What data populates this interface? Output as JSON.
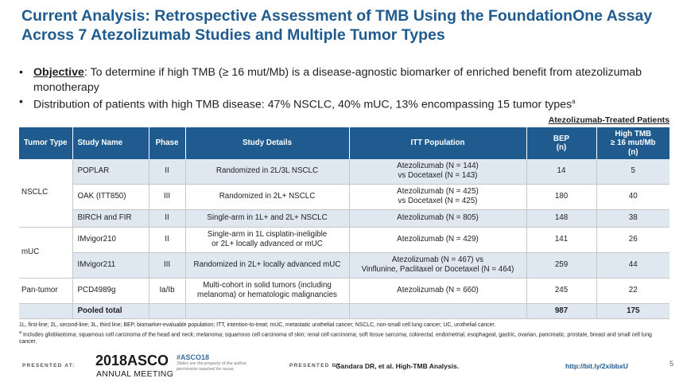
{
  "title": "Current Analysis: Retrospective Assessment of TMB Using the FoundationOne Assay Across 7 Atezolizumab Studies and Multiple Tumor Types",
  "bullets": {
    "objective_label": "Objective",
    "objective_text": ": To determine if high TMB (≥ 16 mut/Mb) is a disease-agnostic biomarker of enriched benefit from atezolizumab monotherapy",
    "distribution_text": "Distribution of patients with high TMB disease: 47% NSCLC, 40% mUC, 13% encompassing 15 tumor types",
    "distribution_superscript": "a"
  },
  "table_group_label": "Atezolizumab-Treated Patients",
  "table": {
    "headers": [
      "Tumor Type",
      "Study Name",
      "Phase",
      "Study Details",
      "ITT Population",
      "BEP\n(n)",
      "High TMB\n≥ 16 mut/Mb\n(n)"
    ],
    "groups": {
      "nsclc": "NSCLC",
      "muc": "mUC",
      "pan": "Pan-tumor"
    },
    "rows": [
      {
        "study": "POPLAR",
        "phase": "II",
        "details": "Randomized in 2L/3L NSCLC",
        "itt": "Atezolizumab (N = 144)\nvs Docetaxel (N = 143)",
        "bep": "14",
        "tmb": "5"
      },
      {
        "study": "OAK (ITT850)",
        "phase": "III",
        "details": "Randomized  in 2L+ NSCLC",
        "itt": "Atezolizumab (N = 425)\nvs Docetaxel (N = 425)",
        "bep": "180",
        "tmb": "40"
      },
      {
        "study": "BIRCH and FIR",
        "phase": "II",
        "details": "Single-arm in 1L+ and 2L+ NSCLC",
        "itt": "Atezolizumab (N = 805)",
        "bep": "148",
        "tmb": "38"
      },
      {
        "study": "IMvigor210",
        "phase": "II",
        "details": "Single-arm in 1L cisplatin-ineligible\nor 2L+ locally advanced or mUC",
        "itt": "Atezolizumab (N = 429)",
        "bep": "141",
        "tmb": "26"
      },
      {
        "study": "IMvigor211",
        "phase": "III",
        "details": "Randomized in 2L+ locally advanced mUC",
        "itt": "Atezolizumab (N = 467) vs\nVinflunine, Paclitaxel or Docetaxel (N = 464)",
        "bep": "259",
        "tmb": "44"
      },
      {
        "study": "PCD4989g",
        "phase": "Ia/Ib",
        "details": "Multi-cohort in solid tumors (including\nmelanoma) or hematologic malignancies",
        "itt": "Atezolizumab (N = 660)",
        "bep": "245",
        "tmb": "22"
      }
    ],
    "pooled": {
      "label": "Pooled total",
      "bep": "987",
      "tmb": "175"
    }
  },
  "footnote": {
    "abbrev": "1L, first-line; 2L, second-line; 3L, third line; BEP, biomarker-evaluable population; ITT, intention-to-treat; mUC, metastatic urothelial cancer; NSCLC, non-small cell lung cancer; UC, urothelial cancer.",
    "superscript": "a",
    "tumor_note": " Includes glioblastoma; squamous cell carcinoma of the head and neck; melanoma; squamous cell carcinoma of skin; renal cell carcinoma; soft tissue sarcoma; colorectal, endometrial, esophageal, gastric, ovarian, pancreatic, prostate, breast and small cell lung cancer."
  },
  "footer": {
    "presented_at": "PRESENTED AT:",
    "asco_year": "2018",
    "asco_name": "ASCO",
    "asco_meeting": "ANNUAL MEETING",
    "hashtag": "#ASCO18",
    "hashtag_note": "Slides are the property of the author, permission required for reuse.",
    "presented_by": "PRESENTED BY:",
    "presenter": "Gandara DR, et al. High-TMB Analysis.",
    "link": "http://bit.ly/2xibbxU",
    "page": "5"
  },
  "colors": {
    "brand_blue": "#1f5b8f",
    "row_shade": "#dfe7f1"
  }
}
